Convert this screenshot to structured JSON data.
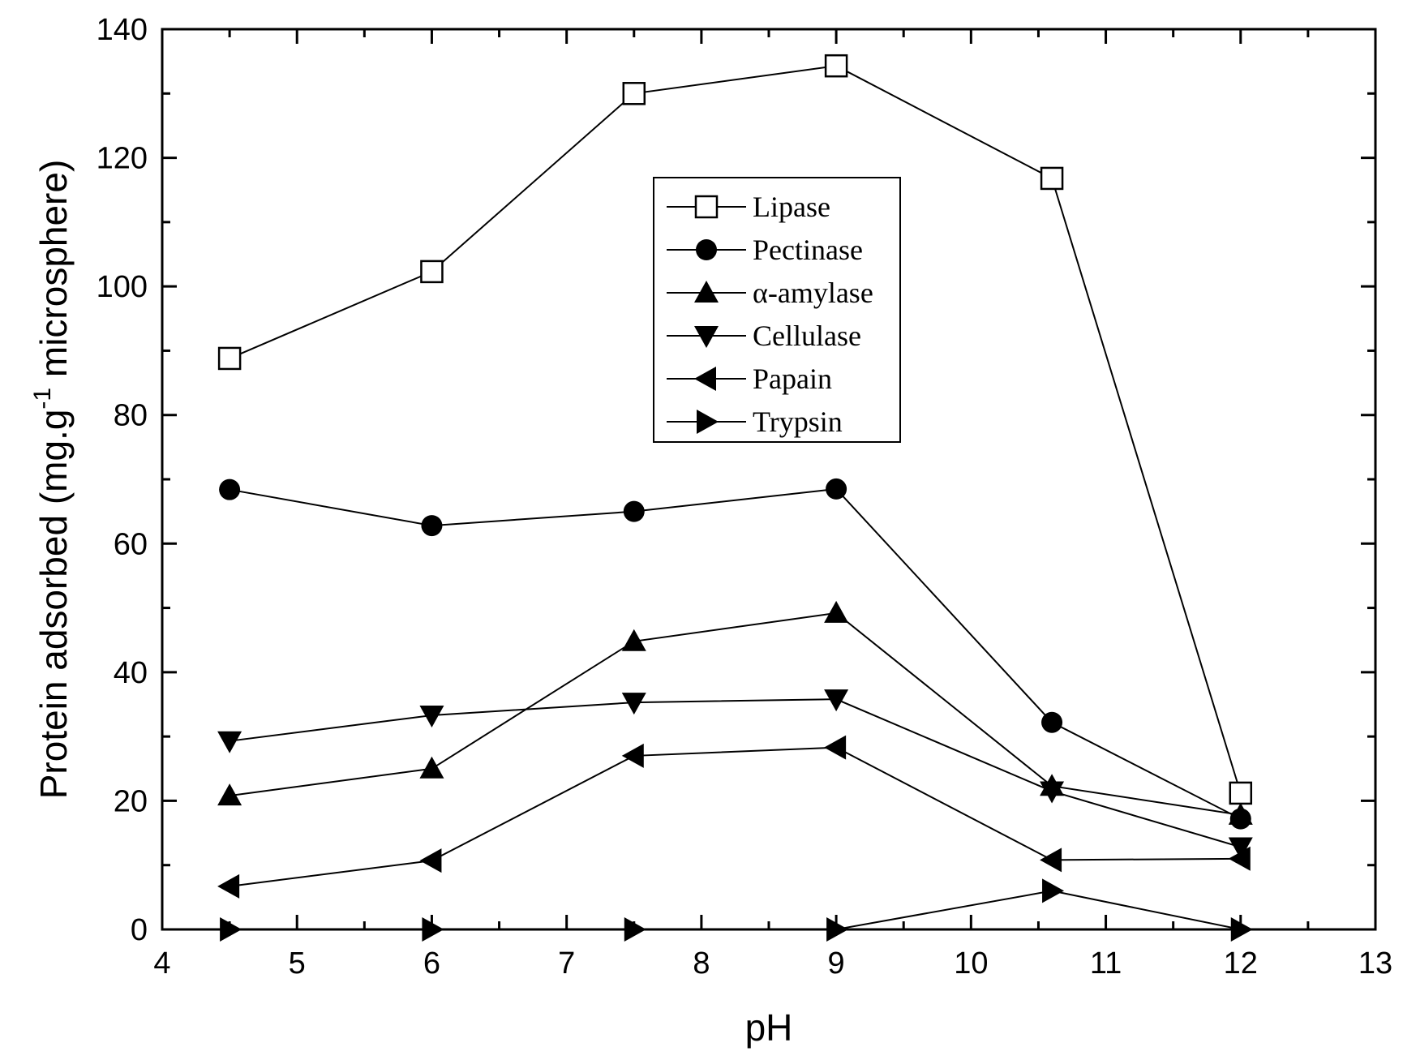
{
  "chart_data": {
    "type": "line",
    "xlabel": "pH",
    "ylabel": "Protein adsorbed (mg.g",
    "ylabel_sup": "-1",
    "ylabel_suffix": " microsphere)",
    "xlim": [
      4,
      13
    ],
    "ylim": [
      0,
      140
    ],
    "xticks": [
      "4",
      "5",
      "6",
      "7",
      "8",
      "9",
      "10",
      "11",
      "12",
      "13"
    ],
    "yticks": [
      "0",
      "20",
      "40",
      "60",
      "80",
      "100",
      "120",
      "140"
    ],
    "grid": false,
    "legend_position": "top-center",
    "series": [
      {
        "name": "Lipase",
        "marker": "square-open",
        "x": [
          4.5,
          6,
          7.5,
          9,
          10.6,
          12
        ],
        "y": [
          88.8,
          102.3,
          130.0,
          134.3,
          116.8,
          21.2
        ]
      },
      {
        "name": "Pectinase",
        "marker": "circle",
        "x": [
          4.5,
          6,
          7.5,
          9,
          10.6,
          12
        ],
        "y": [
          68.4,
          62.8,
          65.0,
          68.5,
          32.2,
          17.2
        ]
      },
      {
        "name": "α-amylase",
        "marker": "triangle-up",
        "x": [
          4.5,
          6,
          7.5,
          9,
          10.6,
          12
        ],
        "y": [
          20.8,
          25.0,
          44.8,
          49.2,
          22.3,
          17.8
        ]
      },
      {
        "name": "Cellulase",
        "marker": "triangle-down",
        "x": [
          4.5,
          6,
          7.5,
          9,
          10.6,
          12
        ],
        "y": [
          29.3,
          33.3,
          35.3,
          35.8,
          21.5,
          12.8
        ]
      },
      {
        "name": "Papain",
        "marker": "triangle-left",
        "x": [
          4.5,
          6,
          7.5,
          9,
          10.6,
          12
        ],
        "y": [
          6.7,
          10.7,
          27.0,
          28.3,
          10.8,
          11.0
        ]
      },
      {
        "name": "Trypsin",
        "marker": "triangle-right",
        "x": [
          4.5,
          6,
          7.5,
          9,
          10.6,
          12
        ],
        "y": [
          0.0,
          0.0,
          0.0,
          0.0,
          6.0,
          0.0
        ]
      }
    ]
  }
}
